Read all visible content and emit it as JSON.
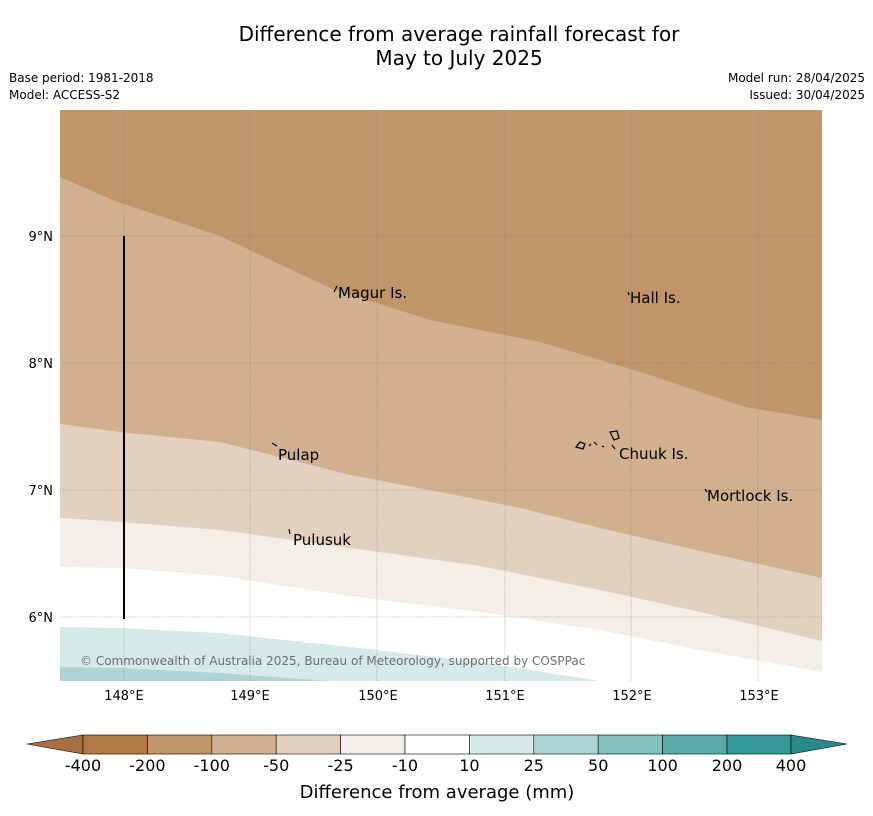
{
  "title": {
    "line1": "Difference from average rainfall forecast for",
    "line2": "May to July 2025"
  },
  "meta": {
    "base_period": "Base period: 1981-2018",
    "model": "Model: ACCESS-S2",
    "model_run": "Model run: 28/04/2025",
    "issued": "Issued: 30/04/2025"
  },
  "map": {
    "lon_ticks": [
      "148°E",
      "149°E",
      "150°E",
      "151°E",
      "152°E",
      "153°E"
    ],
    "lat_ticks": [
      "9°N",
      "8°N",
      "7°N",
      "6°N"
    ],
    "places": {
      "magur": "Magur Is.",
      "hall": "Hall Is.",
      "pulap": "Pulap",
      "chuuk": "Chuuk Is.",
      "mortlock": "Mortlock Is.",
      "pulusuk": "Pulusuk"
    },
    "copyright": "© Commonwealth of Australia 2025, Bureau of Meteorology, supported by COSPPac"
  },
  "colorbar": {
    "title": "Difference from average (mm)",
    "labels": [
      "-400",
      "-200",
      "-100",
      "-50",
      "-25",
      "-10",
      "10",
      "25",
      "50",
      "100",
      "200",
      "400"
    ],
    "colors": {
      "lt_minus400": "#a87040",
      "minus400_minus200": "#b07a45",
      "minus200_minus100": "#bf9569",
      "minus100_minus50": "#d0b08f",
      "minus50_minus25": "#e3d1c0",
      "minus25_minus10": "#f4eee9",
      "minus10_10": "#ffffff",
      "10_25": "#d6eaea",
      "25_50": "#aed5d5",
      "50_100": "#84c0c0",
      "100_200": "#59abab",
      "200_400": "#35999a",
      "gt_400": "#2a8a8a"
    }
  }
}
